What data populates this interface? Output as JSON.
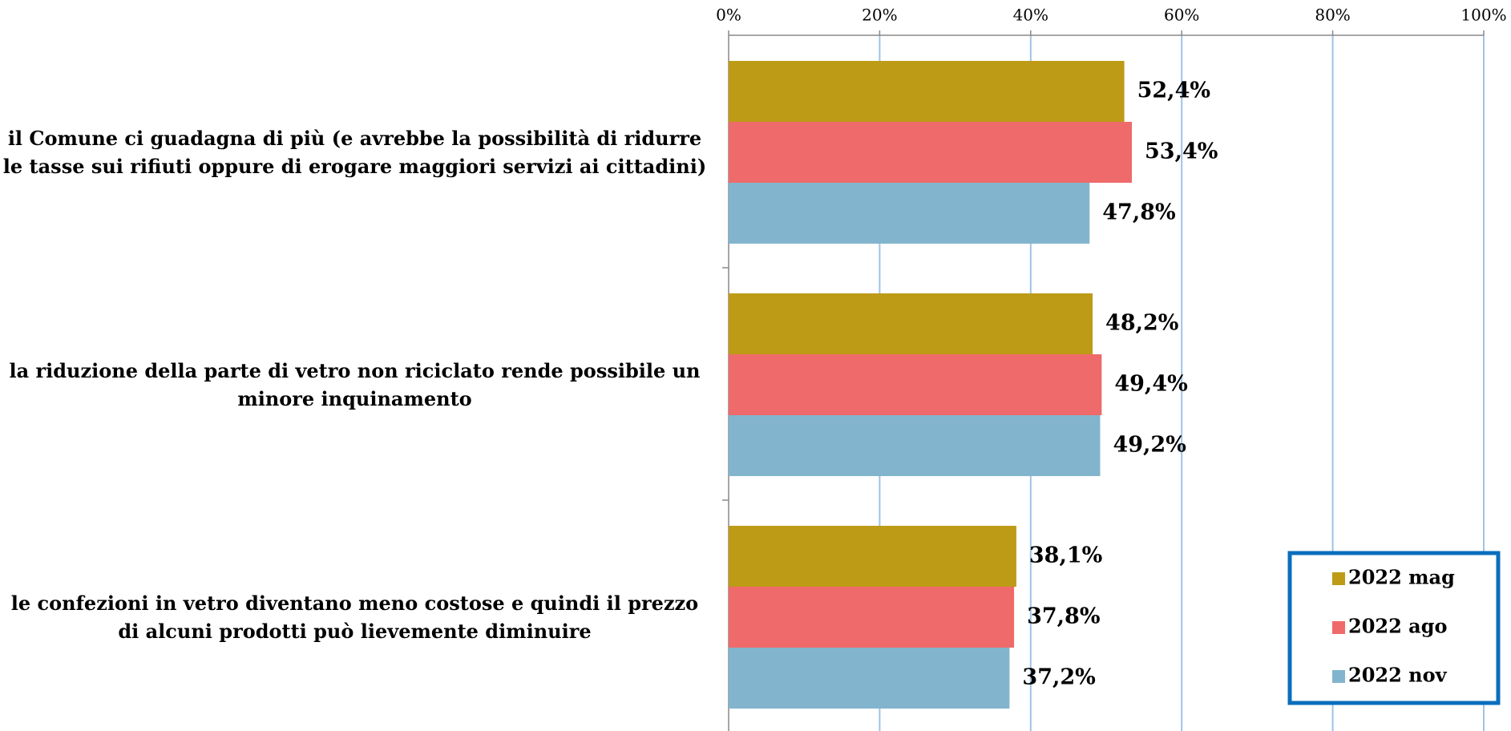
{
  "chart_data": {
    "type": "bar",
    "orientation": "horizontal",
    "categories": [
      "il Comune ci guadagna di più (e avrebbe la possibilità di ridurre le tasse sui rifiuti oppure di erogare maggiori servizi ai cittadini)",
      "la riduzione della parte di vetro non riciclato rende possibile un minore inquinamento",
      "le confezioni in vetro diventano meno costose e quindi il prezzo di alcuni prodotti può lievemente diminuire"
    ],
    "series": [
      {
        "name": "2022 mag",
        "color": "#bd9b16",
        "values": [
          52.4,
          48.2,
          38.1
        ],
        "value_labels": [
          "52,4%",
          "48,2%",
          "38,1%"
        ]
      },
      {
        "name": "2022 ago",
        "color": "#ef6a6a",
        "values": [
          53.4,
          49.4,
          37.8
        ],
        "value_labels": [
          "53,4%",
          "49,4%",
          "37,8%"
        ]
      },
      {
        "name": "2022 nov",
        "color": "#82b5cd",
        "values": [
          47.8,
          49.2,
          37.2
        ],
        "value_labels": [
          "47,8%",
          "49,2%",
          "37,2%"
        ]
      }
    ],
    "xlim": [
      0,
      100
    ],
    "xticks": [
      {
        "value": 0,
        "label": "0%"
      },
      {
        "value": 20,
        "label": "20%"
      },
      {
        "value": 40,
        "label": "40%"
      },
      {
        "value": 60,
        "label": "60%"
      },
      {
        "value": 80,
        "label": "80%"
      },
      {
        "value": 100,
        "label": "100%"
      }
    ],
    "grid": true,
    "legend": "lower right"
  }
}
